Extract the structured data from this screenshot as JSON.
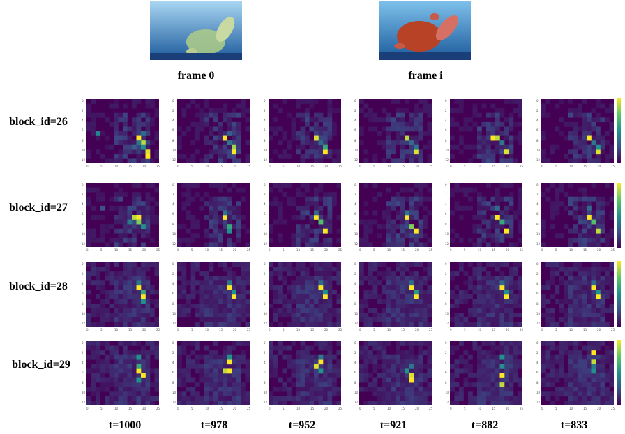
{
  "frames": [
    {
      "label": "frame 0",
      "tint": "#a9c98a"
    },
    {
      "label": "frame i",
      "tint": "#c8432a"
    }
  ],
  "rows": [
    "block_id=26",
    "block_id=27",
    "block_id=28",
    "block_id=29"
  ],
  "columns": [
    "t=1000",
    "t=978",
    "t=952",
    "t=921",
    "t=882",
    "t=833"
  ],
  "colors": {
    "background_low": "#440154",
    "colormap": [
      "#440154",
      "#3b528b",
      "#21918c",
      "#5ec962",
      "#fde725"
    ],
    "ocean": "#3f86c7"
  },
  "chart_data": {
    "type": "heatmap",
    "colormap": "viridis",
    "grid_cols": 16,
    "grid_rows": 14,
    "xticks": [
      "0",
      "5",
      "10",
      "15",
      "20",
      "25"
    ],
    "yticks": [
      "0",
      "2",
      "4",
      "6",
      "8",
      "10",
      "12"
    ],
    "panels": [
      {
        "row": 0,
        "hot": [
          [
            11,
            8,
            1.0
          ],
          [
            12,
            9,
            0.9
          ],
          [
            13,
            11,
            0.95
          ],
          [
            13,
            12,
            1.0
          ],
          [
            12,
            10,
            0.5
          ],
          [
            11,
            9,
            0.4
          ],
          [
            10,
            10,
            0.3
          ],
          [
            2,
            7,
            0.45
          ],
          [
            4,
            14,
            0.3
          ],
          [
            12,
            7,
            0.35
          ]
        ]
      },
      {
        "row": 0,
        "hot": [
          [
            10,
            8,
            1.0
          ],
          [
            12,
            10,
            0.85
          ],
          [
            12,
            11,
            1.0
          ],
          [
            11,
            9,
            0.4
          ],
          [
            11,
            7,
            0.3
          ],
          [
            3,
            14,
            0.25
          ]
        ]
      },
      {
        "row": 0,
        "hot": [
          [
            10,
            8,
            0.95
          ],
          [
            12,
            11,
            1.0
          ],
          [
            12,
            10,
            0.6
          ],
          [
            11,
            9,
            0.35
          ],
          [
            4,
            14,
            0.2
          ]
        ]
      },
      {
        "row": 0,
        "hot": [
          [
            10,
            8,
            0.9
          ],
          [
            12,
            11,
            0.95
          ],
          [
            11,
            9,
            0.35
          ],
          [
            12,
            10,
            0.4
          ]
        ]
      },
      {
        "row": 0,
        "hot": [
          [
            9,
            8,
            1.0
          ],
          [
            10,
            8,
            0.9
          ],
          [
            12,
            11,
            0.95
          ],
          [
            11,
            9,
            0.4
          ]
        ]
      },
      {
        "row": 0,
        "hot": [
          [
            10,
            8,
            1.0
          ],
          [
            12,
            11,
            0.95
          ],
          [
            11,
            9,
            0.4
          ],
          [
            12,
            10,
            0.5
          ]
        ]
      },
      {
        "row": 1,
        "hot": [
          [
            10,
            7,
            0.9
          ],
          [
            11,
            7,
            1.0
          ],
          [
            11,
            8,
            0.8
          ],
          [
            12,
            9,
            0.5
          ],
          [
            9,
            8,
            0.4
          ],
          [
            3,
            5,
            0.25
          ]
        ]
      },
      {
        "row": 1,
        "hot": [
          [
            10,
            7,
            1.0
          ],
          [
            11,
            9,
            0.6
          ],
          [
            11,
            10,
            0.5
          ],
          [
            10,
            6,
            0.4
          ]
        ]
      },
      {
        "row": 1,
        "hot": [
          [
            10,
            7,
            1.0
          ],
          [
            11,
            8,
            0.7
          ],
          [
            12,
            10,
            1.0
          ],
          [
            10,
            6,
            0.35
          ]
        ]
      },
      {
        "row": 1,
        "hot": [
          [
            10,
            7,
            1.0
          ],
          [
            11,
            9,
            0.8
          ],
          [
            12,
            10,
            1.0
          ],
          [
            10,
            6,
            0.4
          ]
        ]
      },
      {
        "row": 1,
        "hot": [
          [
            10,
            7,
            1.0
          ],
          [
            11,
            8,
            0.6
          ],
          [
            12,
            10,
            1.0
          ],
          [
            10,
            5,
            0.35
          ]
        ]
      },
      {
        "row": 1,
        "hot": [
          [
            10,
            7,
            1.0
          ],
          [
            11,
            8,
            0.7
          ],
          [
            12,
            10,
            0.9
          ],
          [
            10,
            5,
            0.35
          ]
        ]
      },
      {
        "row": 2,
        "hot": [
          [
            11,
            5,
            1.0
          ],
          [
            12,
            7,
            1.0
          ],
          [
            12,
            6,
            0.6
          ],
          [
            11,
            4,
            0.4
          ],
          [
            12,
            8,
            0.5
          ]
        ]
      },
      {
        "row": 2,
        "hot": [
          [
            11,
            5,
            1.0
          ],
          [
            12,
            7,
            1.0
          ],
          [
            12,
            6,
            0.5
          ],
          [
            11,
            4,
            0.4
          ]
        ]
      },
      {
        "row": 2,
        "hot": [
          [
            11,
            5,
            1.0
          ],
          [
            12,
            7,
            1.0
          ],
          [
            12,
            6,
            0.5
          ],
          [
            11,
            4,
            0.35
          ]
        ]
      },
      {
        "row": 2,
        "hot": [
          [
            11,
            5,
            1.0
          ],
          [
            12,
            7,
            1.0
          ],
          [
            12,
            6,
            0.55
          ],
          [
            11,
            4,
            0.35
          ]
        ]
      },
      {
        "row": 2,
        "hot": [
          [
            11,
            5,
            1.0
          ],
          [
            12,
            7,
            1.0
          ],
          [
            12,
            6,
            0.5
          ],
          [
            11,
            4,
            0.35
          ]
        ]
      },
      {
        "row": 2,
        "hot": [
          [
            11,
            5,
            1.0
          ],
          [
            12,
            7,
            1.0
          ],
          [
            12,
            6,
            0.5
          ],
          [
            11,
            4,
            0.35
          ]
        ]
      },
      {
        "row": 3,
        "hot": [
          [
            11,
            6,
            1.0
          ],
          [
            12,
            7,
            1.0
          ],
          [
            11,
            5,
            0.6
          ],
          [
            11,
            3,
            0.5
          ],
          [
            11,
            8,
            0.5
          ]
        ]
      },
      {
        "row": 3,
        "hot": [
          [
            11,
            4,
            1.0
          ],
          [
            11,
            6,
            1.0
          ],
          [
            10,
            6,
            0.9
          ],
          [
            11,
            3,
            0.5
          ]
        ]
      },
      {
        "row": 3,
        "hot": [
          [
            11,
            4,
            1.0
          ],
          [
            10,
            5,
            0.95
          ],
          [
            11,
            6,
            0.5
          ],
          [
            11,
            3,
            0.4
          ]
        ]
      },
      {
        "row": 3,
        "hot": [
          [
            11,
            7,
            0.95
          ],
          [
            11,
            8,
            1.0
          ],
          [
            10,
            6,
            0.5
          ],
          [
            11,
            5,
            0.4
          ]
        ]
      },
      {
        "row": 3,
        "hot": [
          [
            11,
            7,
            1.0
          ],
          [
            11,
            9,
            0.9
          ],
          [
            11,
            5,
            0.5
          ],
          [
            11,
            3,
            0.5
          ]
        ]
      },
      {
        "row": 3,
        "hot": [
          [
            11,
            2,
            1.0
          ],
          [
            11,
            4,
            0.9
          ],
          [
            11,
            6,
            0.5
          ],
          [
            11,
            5,
            0.4
          ]
        ]
      }
    ]
  }
}
